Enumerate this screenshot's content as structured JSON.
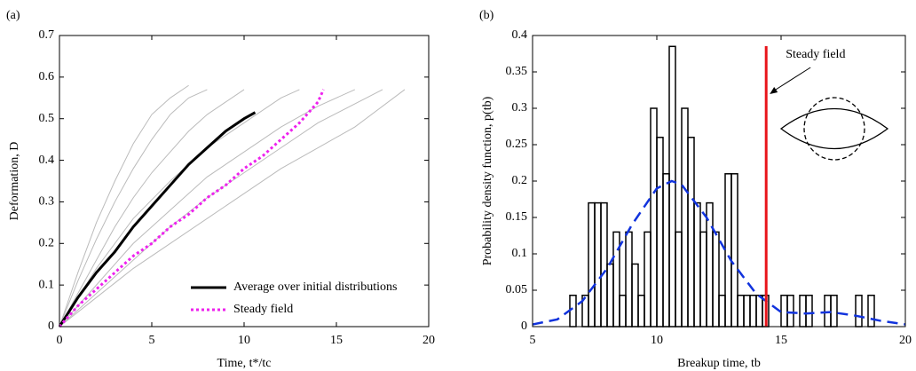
{
  "chart_data": [
    {
      "type": "line",
      "panel_label": "(a)",
      "x_label": "Time, t*/tc",
      "y_label": "Deformation, D",
      "xlim": [
        0,
        20
      ],
      "ylim": [
        0,
        0.7
      ],
      "xticks": [
        0,
        5,
        10,
        15,
        20
      ],
      "yticks": [
        0,
        0.1,
        0.2,
        0.3,
        0.4,
        0.5,
        0.6,
        0.7
      ],
      "legend": "lower right",
      "series": [
        {
          "color": "#bbbbbb",
          "style": "solid",
          "x": [
            0,
            1,
            2,
            3,
            4,
            5,
            6,
            7,
            8
          ],
          "values": [
            0,
            0.11,
            0.21,
            0.3,
            0.38,
            0.45,
            0.51,
            0.55,
            0.57
          ]
        },
        {
          "color": "#bbbbbb",
          "style": "solid",
          "x": [
            0,
            1,
            2,
            3,
            4,
            5,
            6,
            7,
            8,
            9,
            10
          ],
          "values": [
            0,
            0.08,
            0.16,
            0.24,
            0.31,
            0.37,
            0.42,
            0.47,
            0.51,
            0.54,
            0.57
          ]
        },
        {
          "color": "#bbbbbb",
          "style": "solid",
          "x": [
            0,
            2,
            4,
            6,
            8,
            10,
            12,
            13
          ],
          "values": [
            0,
            0.14,
            0.26,
            0.35,
            0.43,
            0.49,
            0.55,
            0.57
          ]
        },
        {
          "color": "#bbbbbb",
          "style": "solid",
          "x": [
            0,
            2,
            4,
            6,
            8,
            10,
            12,
            14,
            16
          ],
          "values": [
            0,
            0.1,
            0.2,
            0.28,
            0.36,
            0.42,
            0.48,
            0.53,
            0.57
          ]
        },
        {
          "color": "#bbbbbb",
          "style": "solid",
          "x": [
            0,
            2,
            4,
            6,
            8,
            10,
            12,
            14,
            16,
            18.7
          ],
          "values": [
            0,
            0.07,
            0.14,
            0.2,
            0.26,
            0.32,
            0.38,
            0.43,
            0.48,
            0.57
          ]
        },
        {
          "color": "#bbbbbb",
          "style": "solid",
          "x": [
            0,
            1,
            2,
            3,
            4,
            5,
            6,
            7
          ],
          "values": [
            0,
            0.13,
            0.25,
            0.35,
            0.44,
            0.51,
            0.55,
            0.58
          ]
        },
        {
          "color": "#bbbbbb",
          "style": "solid",
          "x": [
            0,
            2,
            4,
            6,
            8,
            10,
            12,
            14,
            17.5
          ],
          "values": [
            0,
            0.08,
            0.16,
            0.24,
            0.31,
            0.37,
            0.43,
            0.49,
            0.57
          ]
        },
        {
          "name": "Average over initial distributions",
          "color": "#000000",
          "style": "solid",
          "x": [
            0,
            1,
            2,
            3,
            4,
            5,
            6,
            7,
            8,
            9,
            10,
            10.6
          ],
          "values": [
            0,
            0.07,
            0.13,
            0.18,
            0.24,
            0.29,
            0.34,
            0.39,
            0.43,
            0.47,
            0.5,
            0.515
          ]
        },
        {
          "name": "Steady field",
          "color": "#ee22ee",
          "style": "dotted",
          "x": [
            0,
            1,
            2,
            3,
            4,
            5,
            6,
            7,
            8,
            9,
            10,
            11,
            12,
            13,
            14,
            14.3
          ],
          "values": [
            0,
            0.05,
            0.09,
            0.13,
            0.17,
            0.2,
            0.24,
            0.27,
            0.31,
            0.34,
            0.38,
            0.41,
            0.45,
            0.49,
            0.54,
            0.57
          ]
        }
      ]
    },
    {
      "type": "histogram",
      "panel_label": "(b)",
      "x_label": "Breakup time, tb",
      "y_label": "Probability density function, p(tb)",
      "xlim": [
        5,
        20
      ],
      "ylim": [
        0,
        0.4
      ],
      "xticks": [
        5,
        10,
        15,
        20
      ],
      "yticks": [
        0,
        0.05,
        0.1,
        0.15,
        0.2,
        0.25,
        0.3,
        0.35,
        0.4
      ],
      "color": "#000000",
      "bins": [
        6.5,
        6.75,
        7,
        7.25,
        7.5,
        7.75,
        8,
        8.25,
        8.5,
        8.75,
        9,
        9.25,
        9.5,
        9.75,
        10,
        10.25,
        10.5,
        10.75,
        11,
        11.25,
        11.5,
        11.75,
        12,
        12.25,
        12.5,
        12.75,
        13,
        13.25,
        13.5,
        13.75,
        14,
        14.25,
        14.5,
        14.75,
        15,
        15.25,
        15.5,
        15.75,
        16,
        16.25,
        16.5,
        16.75,
        17,
        17.25,
        17.5,
        17.75,
        18,
        18.25,
        18.5,
        18.75
      ],
      "values": [
        0.043,
        0,
        0.043,
        0.17,
        0.17,
        0.17,
        0.086,
        0.13,
        0.043,
        0.13,
        0.086,
        0.043,
        0.13,
        0.3,
        0.26,
        0.21,
        0.385,
        0.13,
        0.3,
        0.26,
        0.17,
        0.13,
        0.17,
        0.13,
        0.043,
        0.21,
        0.21,
        0.043,
        0.043,
        0.043,
        0.043,
        0.043,
        0,
        0,
        0.043,
        0.043,
        0,
        0.043,
        0.043,
        0,
        0,
        0.043,
        0.043,
        0,
        0,
        0,
        0.043,
        0,
        0.043
      ],
      "series": [
        {
          "color": "#1133dd",
          "style": "dashed",
          "x": [
            5,
            6,
            7,
            8,
            9,
            10,
            10.6,
            11,
            12,
            13,
            14,
            15,
            16,
            17,
            18,
            19,
            20
          ],
          "values": [
            0.003,
            0.01,
            0.035,
            0.08,
            0.14,
            0.19,
            0.2,
            0.195,
            0.15,
            0.09,
            0.045,
            0.02,
            0.018,
            0.02,
            0.015,
            0.008,
            0.003
          ]
        }
      ],
      "vline": {
        "x": 14.4,
        "color": "#e8141b"
      },
      "annotation": "Steady field"
    }
  ]
}
